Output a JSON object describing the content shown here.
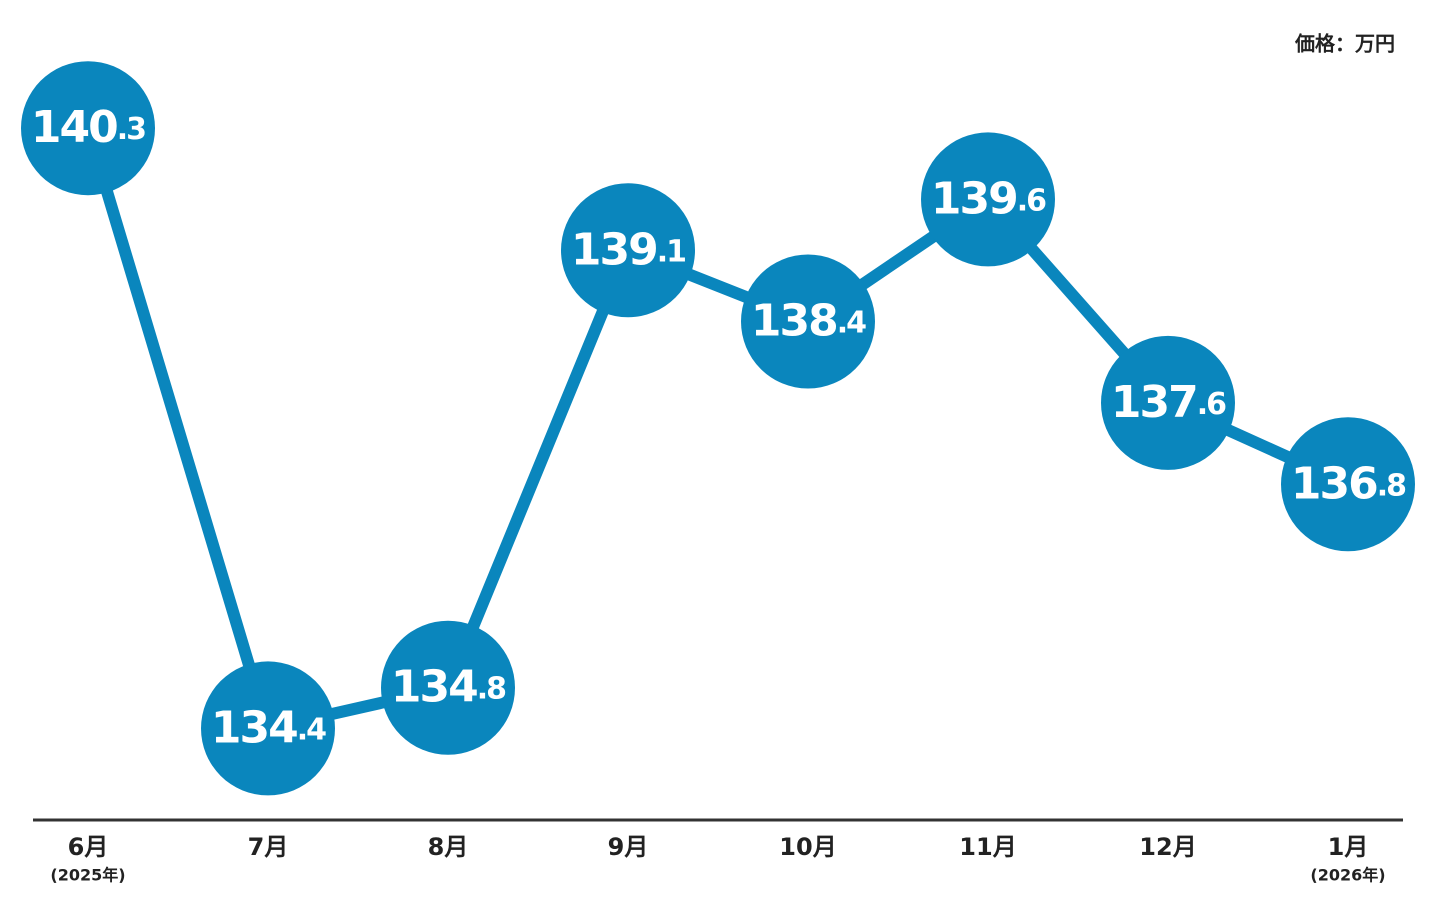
{
  "chart_data": {
    "type": "line",
    "unit_label": "価格：万円",
    "categories": [
      "6月",
      "7月",
      "8月",
      "9月",
      "10月",
      "11月",
      "12月",
      "1月"
    ],
    "category_notes": [
      "(2025年)",
      null,
      null,
      null,
      null,
      null,
      null,
      "(2026年)"
    ],
    "values": [
      140.3,
      134.4,
      134.8,
      139.1,
      138.4,
      139.6,
      137.6,
      136.8
    ],
    "color": "#0a86bd",
    "ylim": [
      133.5,
      141.56
    ]
  }
}
